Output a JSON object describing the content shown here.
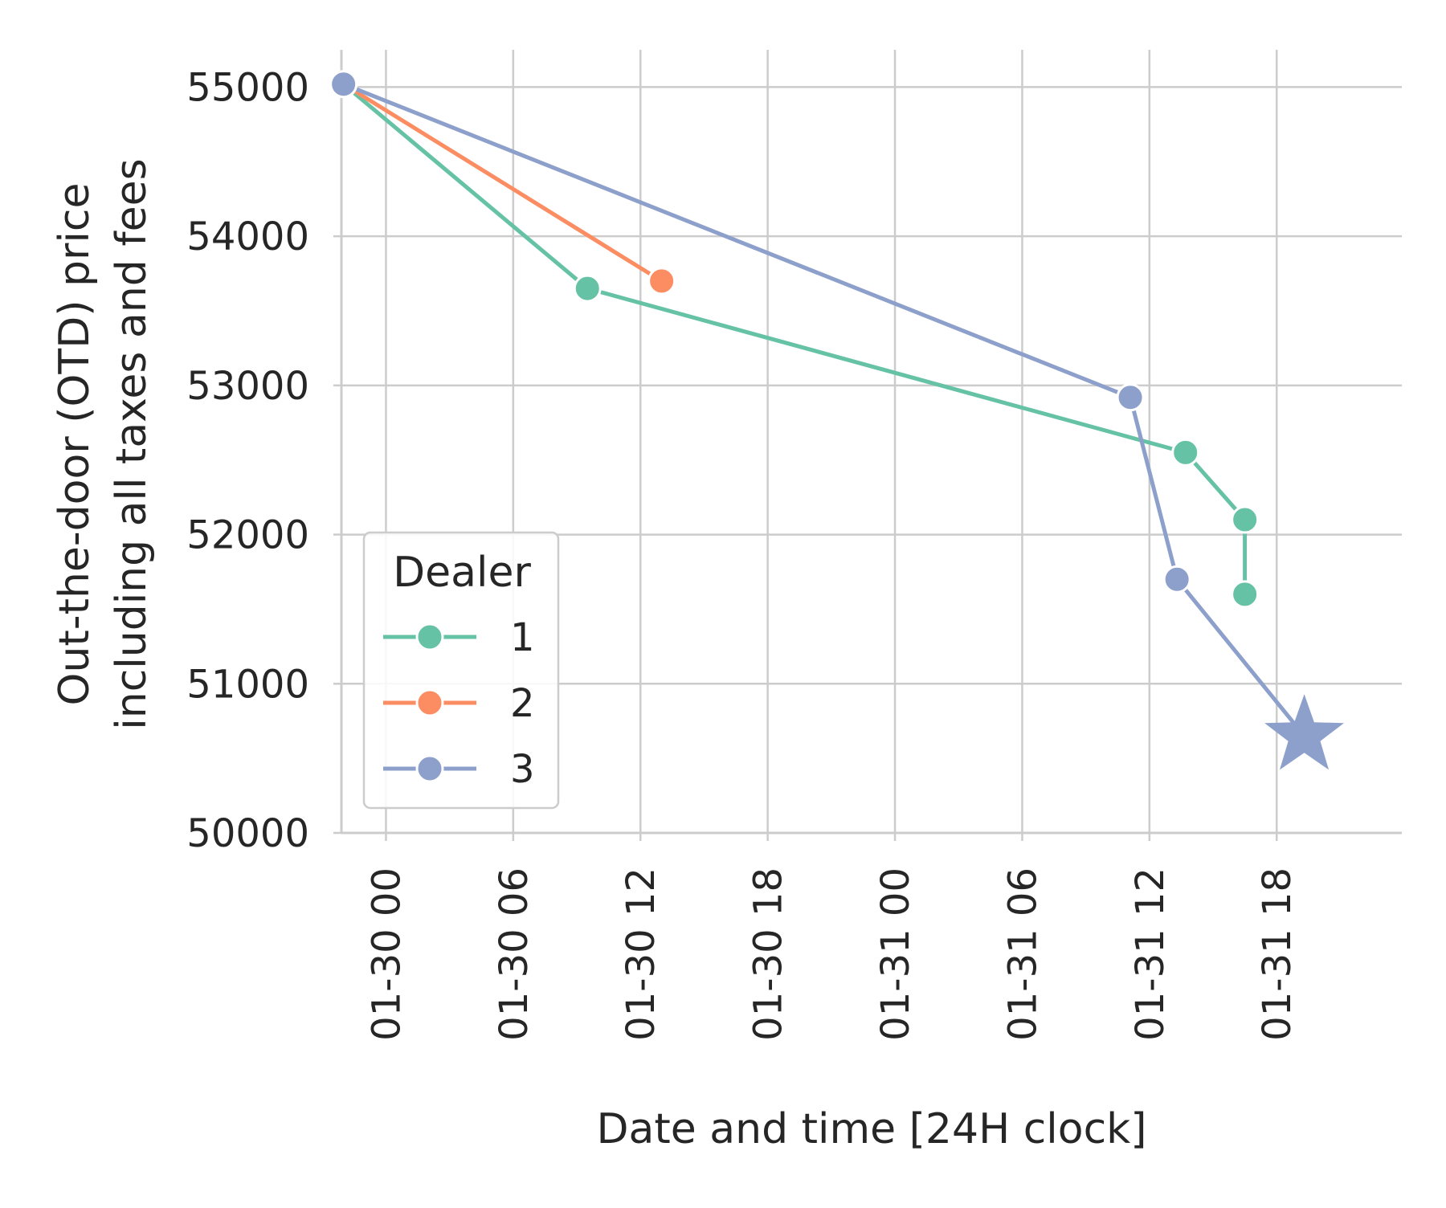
{
  "chart_data": {
    "type": "line",
    "xlabel": "Date and time [24H clock]",
    "ylabel_line1": "Out-the-door (OTD) price",
    "ylabel_line2": "including all taxes and fees",
    "xlim": [
      -2.1,
      47.9
    ],
    "ylim": [
      50000,
      55250
    ],
    "x_ticks": [
      {
        "value": 0,
        "label": "01-30 00"
      },
      {
        "value": 6,
        "label": "01-30 06"
      },
      {
        "value": 12,
        "label": "01-30 12"
      },
      {
        "value": 18,
        "label": "01-30 18"
      },
      {
        "value": 24,
        "label": "01-31 00"
      },
      {
        "value": 30,
        "label": "01-31 06"
      },
      {
        "value": 36,
        "label": "01-31 12"
      },
      {
        "value": 42,
        "label": "01-31 18"
      }
    ],
    "y_ticks": [
      {
        "value": 50000,
        "label": "50000"
      },
      {
        "value": 51000,
        "label": "51000"
      },
      {
        "value": 52000,
        "label": "52000"
      },
      {
        "value": 53000,
        "label": "53000"
      },
      {
        "value": 54000,
        "label": "54000"
      },
      {
        "value": 55000,
        "label": "55000"
      }
    ],
    "grid": true,
    "legend": {
      "title": "Dealer",
      "position": "lower-left"
    },
    "series": [
      {
        "name": "1",
        "color": "#66c2a5",
        "points": [
          {
            "x": -2,
            "y": 55020
          },
          {
            "x": 9.5,
            "y": 53650
          },
          {
            "x": 37.7,
            "y": 52550
          },
          {
            "x": 40.5,
            "y": 52100
          },
          {
            "x": 40.5,
            "y": 51600
          }
        ]
      },
      {
        "name": "2",
        "color": "#fc8d62",
        "points": [
          {
            "x": -2,
            "y": 55020
          },
          {
            "x": 13,
            "y": 53700
          }
        ]
      },
      {
        "name": "3",
        "color": "#8da0cb",
        "points": [
          {
            "x": -2,
            "y": 55020
          },
          {
            "x": 35.1,
            "y": 52920
          },
          {
            "x": 37.3,
            "y": 51700
          }
        ]
      }
    ],
    "final_point": {
      "series": "3",
      "x": 43.3,
      "y": 50650,
      "marker": "star",
      "color": "#8da0cb"
    }
  }
}
